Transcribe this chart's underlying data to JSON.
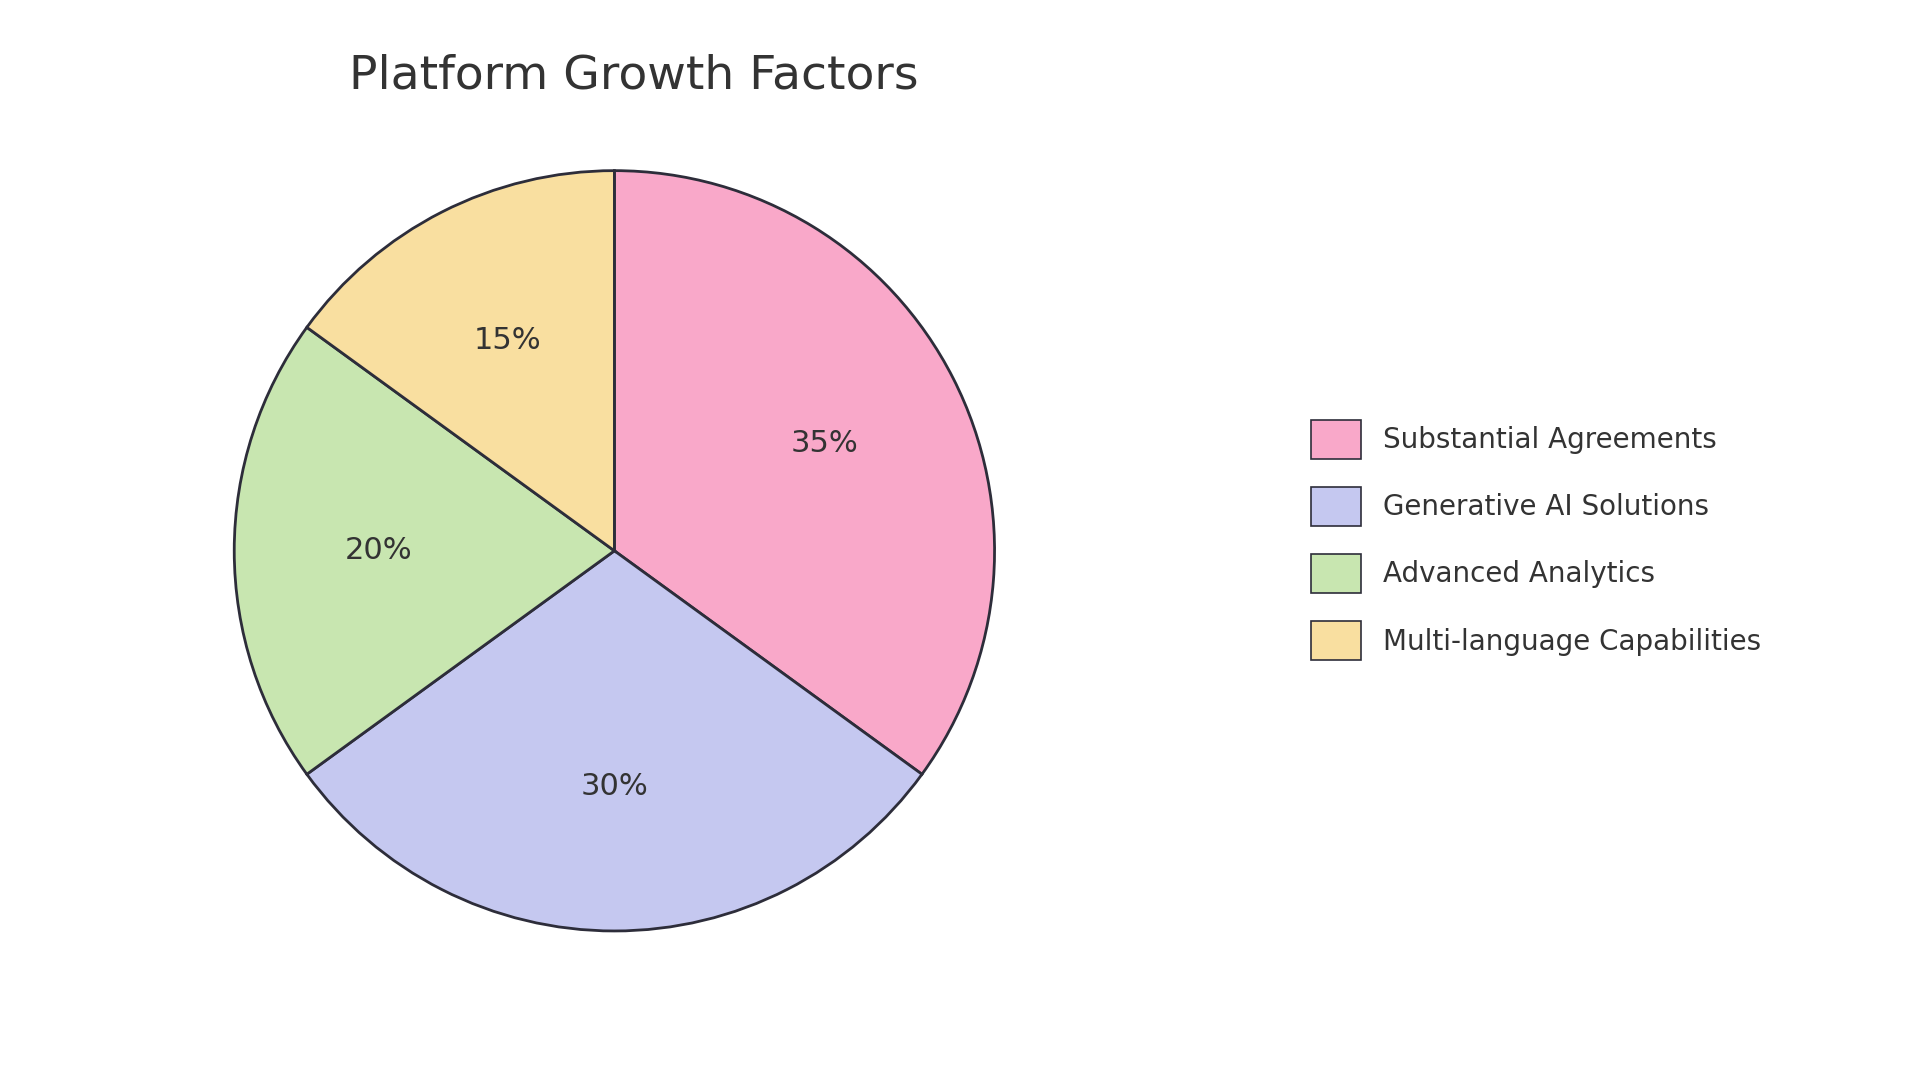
{
  "title": "Platform Growth Factors",
  "labels": [
    "Substantial Agreements",
    "Generative AI Solutions",
    "Advanced Analytics",
    "Multi-language Capabilities"
  ],
  "values": [
    35,
    30,
    20,
    15
  ],
  "colors": [
    "#F9A8C9",
    "#C5C8F0",
    "#C8E6B0",
    "#F9DFA0"
  ],
  "edge_color": "#2d2d3a",
  "edge_width": 2.0,
  "pct_labels": [
    "35%",
    "30%",
    "20%",
    "15%"
  ],
  "title_fontsize": 34,
  "pct_fontsize": 22,
  "legend_fontsize": 20,
  "background_color": "#ffffff",
  "startangle": 90
}
